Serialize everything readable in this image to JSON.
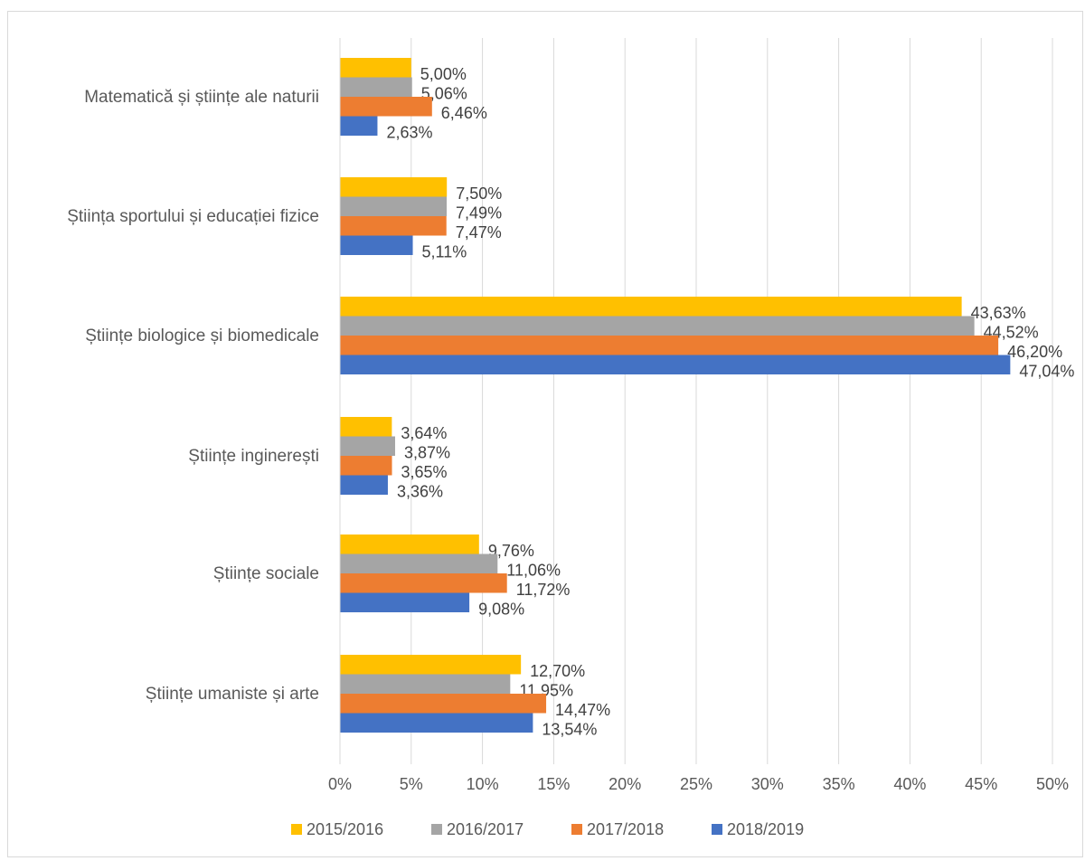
{
  "chart_data": {
    "type": "bar",
    "orientation": "horizontal",
    "categories": [
      "Matematică și științe ale naturii",
      "Știința sportului și educației fizice",
      "Științe biologice și biomedicale",
      "Științe inginerești",
      "Științe sociale",
      "Științe umaniste și arte"
    ],
    "series": [
      {
        "name": "2015/2016",
        "color": "#FFC000",
        "values": [
          5.0,
          7.5,
          43.63,
          3.64,
          9.76,
          12.7
        ],
        "labels": [
          "5,00%",
          "7,50%",
          "43,63%",
          "3,64%",
          "9,76%",
          "12,70%"
        ]
      },
      {
        "name": "2016/2017",
        "color": "#A5A5A5",
        "values": [
          5.06,
          7.49,
          44.52,
          3.87,
          11.06,
          11.95
        ],
        "labels": [
          "5,06%",
          "7,49%",
          "44,52%",
          "3,87%",
          "11,06%",
          "11,95%"
        ]
      },
      {
        "name": "2017/2018",
        "color": "#ED7D31",
        "values": [
          6.46,
          7.47,
          46.2,
          3.65,
          11.72,
          14.47
        ],
        "labels": [
          "6,46%",
          "7,47%",
          "46,20%",
          "3,65%",
          "11,72%",
          "14,47%"
        ]
      },
      {
        "name": "2018/2019",
        "color": "#4472C4",
        "values": [
          2.63,
          5.11,
          47.04,
          3.36,
          9.08,
          13.54
        ],
        "labels": [
          "2,63%",
          "5,11%",
          "47,04%",
          "3,36%",
          "9,08%",
          "13,54%"
        ]
      }
    ],
    "x_ticks": [
      "0%",
      "5%",
      "10%",
      "15%",
      "20%",
      "25%",
      "30%",
      "35%",
      "40%",
      "45%",
      "50%"
    ],
    "xlim": [
      0,
      50
    ],
    "grid": true,
    "legend_position": "bottom"
  }
}
